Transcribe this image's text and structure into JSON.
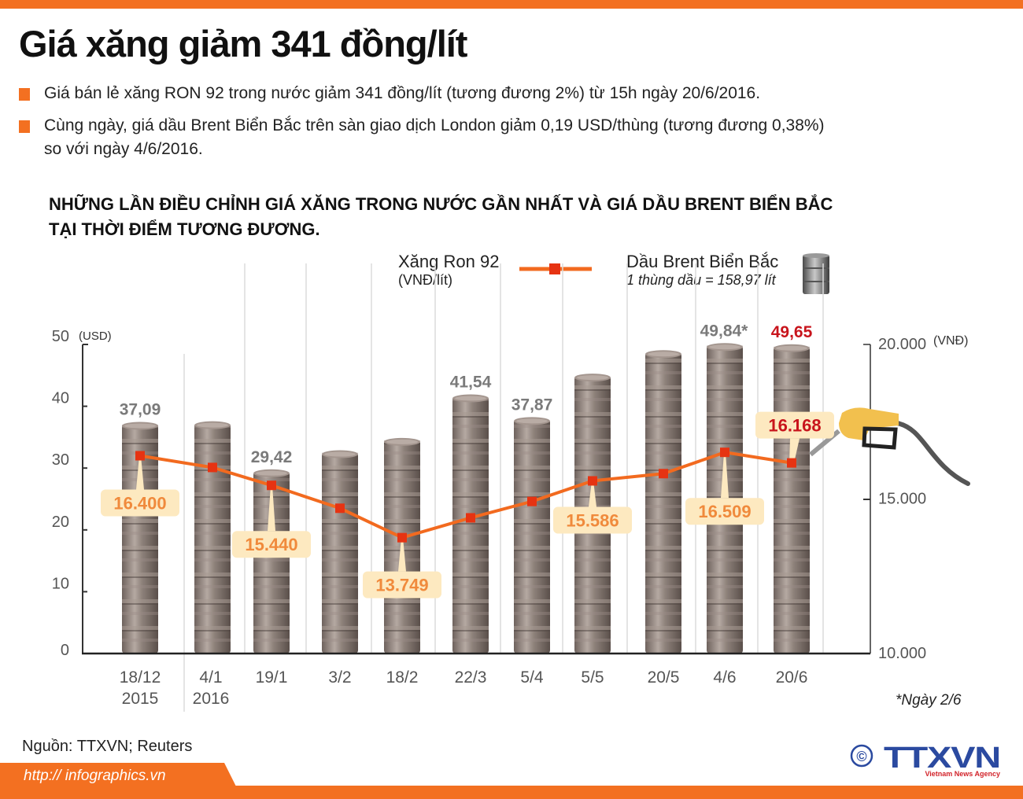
{
  "header": {
    "title": "Giá xăng giảm 341 đồng/lít",
    "bullets": [
      {
        "text": "Giá bán lẻ xăng RON 92 trong nước giảm 341 đồng/lít (tương đương 2%) từ 15h ngày 20/6/2016."
      },
      {
        "line1": "Cùng ngày, giá dầu Brent Biển Bắc trên sàn giao dịch London giảm 0,19 USD/thùng (tương đương 0,38%)",
        "line2": "so với ngày 4/6/2016."
      }
    ],
    "subtitle_line1": "NHỮNG LẦN ĐIỀU CHỈNH GIÁ XĂNG TRONG NƯỚC GẦN NHẤT VÀ GIÁ DẦU BRENT BIỂN BẮC",
    "subtitle_line2": "TẠI THỜI ĐIỂM TƯƠNG ĐƯƠNG."
  },
  "legend": {
    "gasoline_label": "Xăng Ron 92",
    "gasoline_unit": "(VNĐ/lít)",
    "brent_label": "Dầu Brent Biển Bắc",
    "brent_note": "1 thùng dầu = 158,97 lít"
  },
  "footer": {
    "source": "Nguồn: TTXVN; Reuters",
    "url": "http:// infographics.vn",
    "note": "*Ngày 2/6",
    "logo_text": "TTXVN",
    "logo_sub": "Vietnam News Agency",
    "copyright": "©"
  },
  "colors": {
    "accent": "#f37021",
    "line": "#f26a1f",
    "marker": "#e63312",
    "label_bg": "#fde9c0",
    "label_text": "#f08a3c",
    "highlight": "#c8141c",
    "barrel": "#8c7f78",
    "axis_text": "#555555",
    "logo_blue": "#2b4aa0"
  },
  "chart_data": {
    "type": "bar+line",
    "title": "NHỮNG LẦN ĐIỀU CHỈNH GIÁ XĂNG TRONG NƯỚC GẦN NHẤT VÀ GIÁ DẦU BRENT BIỂN BẮC TẠI THỜI ĐIỂM TƯƠNG ĐƯƠNG.",
    "categories": [
      "18/12\n2015",
      "4/1\n2016",
      "19/1",
      "3/2",
      "18/2",
      "22/3",
      "5/4",
      "5/5",
      "20/5",
      "4/6",
      "20/6"
    ],
    "category_line1": [
      "18/12",
      "4/1",
      "19/1",
      "3/2",
      "18/2",
      "22/3",
      "5/4",
      "5/5",
      "20/5",
      "4/6",
      "20/6"
    ],
    "category_line2": [
      "2015",
      "2016",
      "",
      "",
      "",
      "",
      "",
      "",
      "",
      "",
      ""
    ],
    "series": [
      {
        "name": "Dầu Brent Biển Bắc",
        "type": "bar",
        "axis": "left",
        "unit": "USD",
        "values": [
          37.09,
          37.2,
          29.42,
          32.5,
          34.5,
          41.54,
          37.87,
          44.9,
          48.7,
          49.84,
          49.65
        ],
        "labels": [
          "37,09",
          "",
          "29,42",
          "",
          "",
          "41,54",
          "37,87",
          "",
          "",
          "49,84*",
          "49,65"
        ]
      },
      {
        "name": "Xăng Ron 92",
        "type": "line",
        "axis": "right",
        "unit": "VNĐ/lít",
        "values": [
          16400,
          16020,
          15440,
          14700,
          13749,
          14390,
          14920,
          15586,
          15820,
          16509,
          16168
        ],
        "labels": [
          "16.400",
          "",
          "15.440",
          "",
          "13.749",
          "",
          "",
          "15.586",
          "",
          "16.509",
          "16.168"
        ]
      }
    ],
    "left_axis": {
      "label": "(USD)",
      "ticks": [
        "0",
        "10",
        "20",
        "30",
        "40",
        "50"
      ],
      "range": [
        0,
        50
      ]
    },
    "right_axis": {
      "label": "(VNĐ)",
      "ticks": [
        "10.000",
        "15.000",
        "20.000"
      ],
      "range": [
        10000,
        20000
      ]
    },
    "annotation": "*Ngày 2/6",
    "grid": "vertical separators",
    "legend_position": "top"
  }
}
